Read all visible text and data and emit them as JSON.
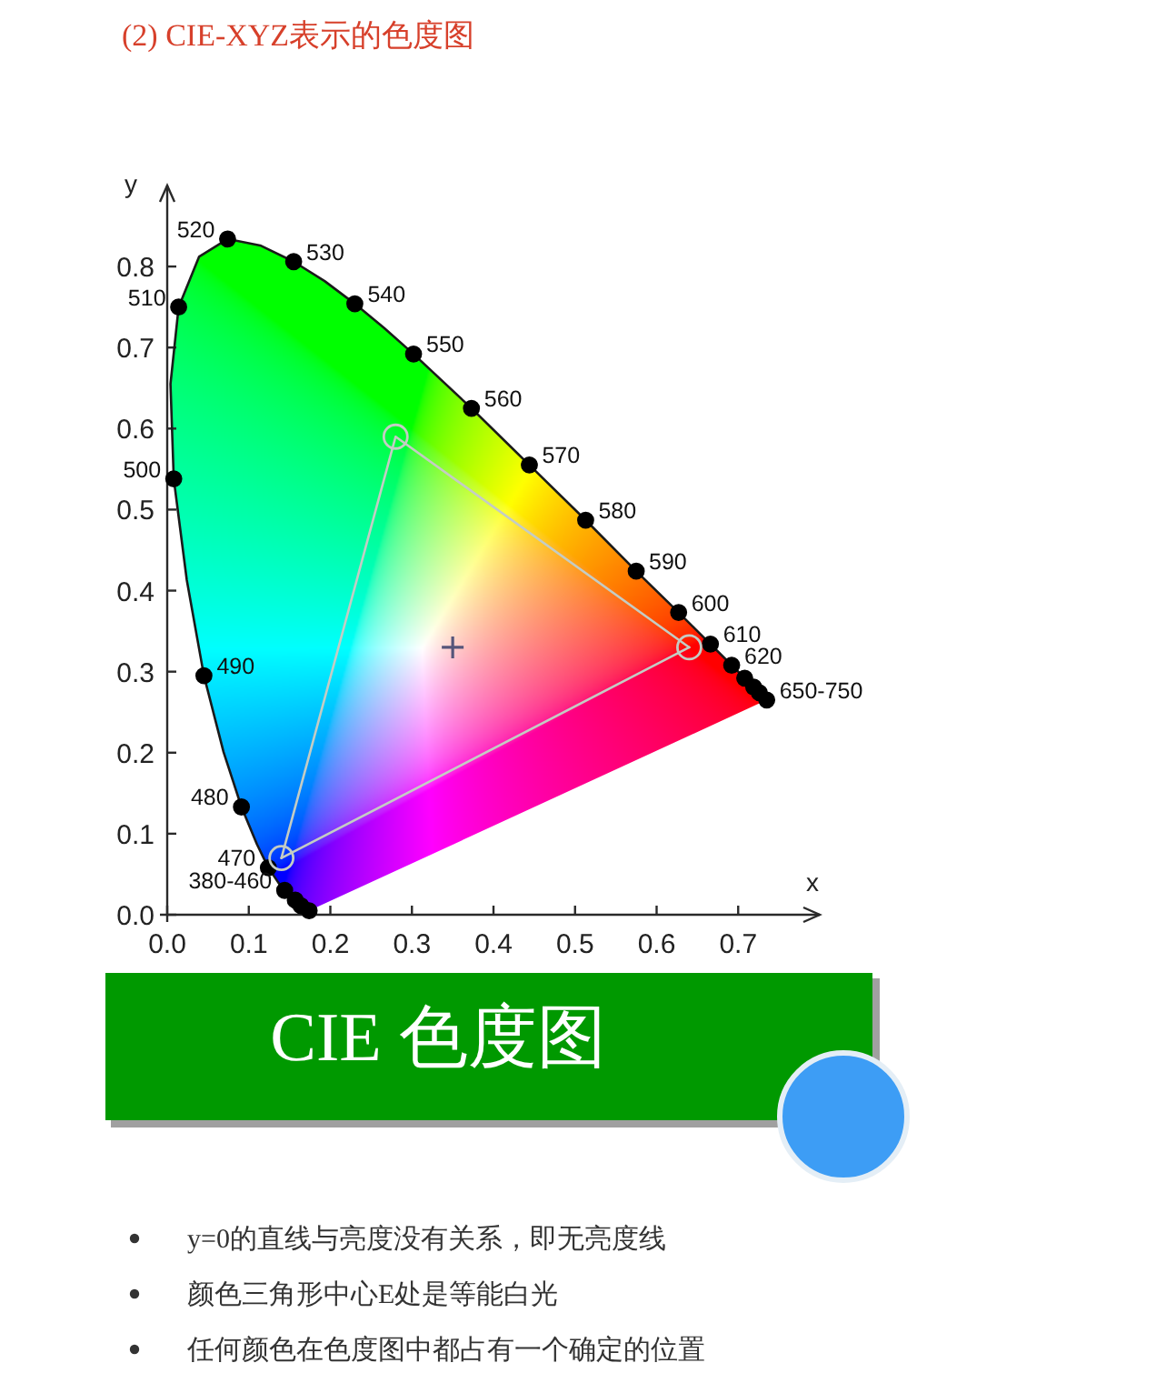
{
  "chart_data": {
    "type": "line",
    "title": "(2) CIE-XYZ表示的色度图",
    "xlabel": "x",
    "ylabel": "y",
    "xlim": [
      0,
      0.8
    ],
    "ylim": [
      0,
      0.9
    ],
    "xticks": [
      {
        "value": 0,
        "label": "0.0"
      },
      0.1,
      0.2,
      0.3,
      0.4,
      0.5,
      0.6,
      0.7
    ],
    "yticks": [
      {
        "value": 0,
        "label": "0.0"
      },
      0.1,
      0.2,
      0.3,
      0.4,
      0.5,
      0.6,
      0.7,
      0.8
    ],
    "series": [
      {
        "color": "#1a1a1a",
        "marker": "none",
        "x": [
          0.174,
          0.171,
          0.164,
          0.157,
          0.151,
          0.144,
          0.136,
          0.124,
          0.11,
          0.091,
          0.069,
          0.045,
          0.024,
          0.008,
          0.004,
          0.014,
          0.039,
          0.074,
          0.114,
          0.155,
          0.193,
          0.23,
          0.266,
          0.302,
          0.373,
          0.444,
          0.513,
          0.575,
          0.627,
          0.666,
          0.692,
          0.719,
          0.735
        ],
        "values": [
          0.005,
          0.005,
          0.011,
          0.018,
          0.023,
          0.03,
          0.04,
          0.058,
          0.087,
          0.133,
          0.201,
          0.295,
          0.413,
          0.538,
          0.655,
          0.75,
          0.812,
          0.834,
          0.826,
          0.806,
          0.782,
          0.754,
          0.724,
          0.692,
          0.625,
          0.555,
          0.487,
          0.424,
          0.373,
          0.334,
          0.308,
          0.281,
          0.265
        ]
      },
      {
        "type": "scatter",
        "color": "#000000",
        "marker": "circle",
        "x": [
          0.174,
          0.164,
          0.157,
          0.144,
          0.124,
          0.091,
          0.045,
          0.008,
          0.014,
          0.074,
          0.155,
          0.23,
          0.302,
          0.373,
          0.444,
          0.513,
          0.575,
          0.627,
          0.666,
          0.692,
          0.708,
          0.719,
          0.726,
          0.735
        ],
        "values": [
          0.005,
          0.011,
          0.018,
          0.03,
          0.058,
          0.133,
          0.295,
          0.538,
          0.75,
          0.834,
          0.806,
          0.754,
          0.692,
          0.625,
          0.555,
          0.487,
          0.424,
          0.373,
          0.334,
          0.308,
          0.292,
          0.281,
          0.274,
          0.265
        ]
      },
      {
        "color": "#c4ccc4",
        "marker": "circle",
        "x": [
          0.14,
          0.28,
          0.64
        ],
        "values": [
          0.07,
          0.59,
          0.33
        ]
      },
      {
        "color": "#c4ccc4",
        "marker": "none",
        "x": [
          0.14,
          0.64
        ],
        "values": [
          0.07,
          0.33
        ]
      },
      {
        "type": "scatter",
        "color": "#55557a",
        "marker": "cross",
        "x": [
          0.35
        ],
        "values": [
          0.33
        ]
      }
    ],
    "annotations": [
      {
        "text": "380-460",
        "x": 0.144,
        "y": 0.03
      },
      {
        "text": "470",
        "x": 0.124,
        "y": 0.058
      },
      {
        "text": "480",
        "x": 0.091,
        "y": 0.133
      },
      {
        "text": "490",
        "x": 0.045,
        "y": 0.295
      },
      {
        "text": "500",
        "x": 0.008,
        "y": 0.538
      },
      {
        "text": "510",
        "x": 0.014,
        "y": 0.75
      },
      {
        "text": "520",
        "x": 0.074,
        "y": 0.834
      },
      {
        "text": "530",
        "x": 0.155,
        "y": 0.806
      },
      {
        "text": "540",
        "x": 0.23,
        "y": 0.754
      },
      {
        "text": "550",
        "x": 0.302,
        "y": 0.692
      },
      {
        "text": "560",
        "x": 0.373,
        "y": 0.625
      },
      {
        "text": "570",
        "x": 0.444,
        "y": 0.555
      },
      {
        "text": "580",
        "x": 0.513,
        "y": 0.487
      },
      {
        "text": "590",
        "x": 0.575,
        "y": 0.424
      },
      {
        "text": "600",
        "x": 0.627,
        "y": 0.373
      },
      {
        "text": "610",
        "x": 0.666,
        "y": 0.334
      },
      {
        "text": "620",
        "x": 0.692,
        "y": 0.308
      },
      {
        "text": "650-750",
        "x": 0.735,
        "y": 0.265
      },
      "CIE 色度图",
      "y=0的直线与亮度没有关系，即无亮度线",
      "颜色三角形中心E处是等能白光",
      "任何颜色在色度图中都占有一个确定的位置"
    ]
  }
}
